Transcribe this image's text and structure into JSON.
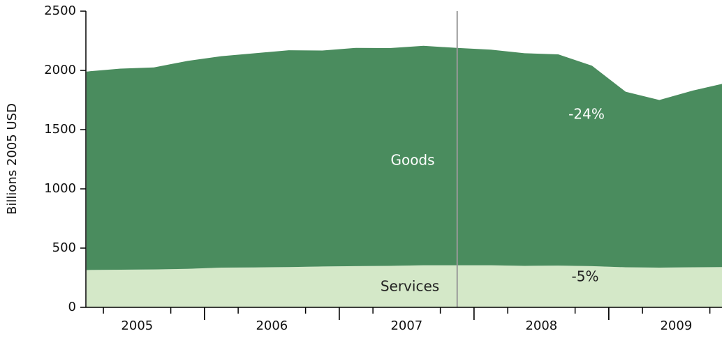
{
  "chart_data": {
    "type": "stacked-area",
    "y_label": "Billions 2005 USD",
    "x": [
      2005.125,
      2005.375,
      2005.625,
      2005.875,
      2006.125,
      2006.375,
      2006.625,
      2006.875,
      2007.125,
      2007.375,
      2007.625,
      2007.875,
      2008.125,
      2008.375,
      2008.625,
      2008.875,
      2009.125,
      2009.375,
      2009.625,
      2009.875
    ],
    "series": [
      {
        "name": "Services",
        "color": "#d4e8c8",
        "values": [
          315,
          318,
          320,
          325,
          335,
          337,
          340,
          345,
          348,
          350,
          355,
          355,
          355,
          350,
          352,
          348,
          338,
          335,
          338,
          340
        ]
      },
      {
        "name": "Goods",
        "color": "#4a8c5e",
        "values": [
          1675,
          1697,
          1705,
          1755,
          1785,
          1808,
          1830,
          1823,
          1842,
          1838,
          1852,
          1835,
          1820,
          1795,
          1783,
          1692,
          1482,
          1415,
          1492,
          1555
        ]
      }
    ],
    "xlim": [
      2005.12,
      2009.84
    ],
    "xticks": [
      {
        "value": 2005.5,
        "label": "2005"
      },
      {
        "value": 2006.5,
        "label": "2006"
      },
      {
        "value": 2007.5,
        "label": "2007"
      },
      {
        "value": 2008.5,
        "label": "2008"
      },
      {
        "value": 2009.5,
        "label": "2009"
      }
    ],
    "ylim": [
      0,
      2500
    ],
    "yticks": [
      0,
      500,
      1000,
      1500,
      2000,
      2500
    ],
    "marker_line_x": 2007.875,
    "annotations": [
      "Goods",
      "Services",
      "-24%",
      "-5%"
    ]
  }
}
